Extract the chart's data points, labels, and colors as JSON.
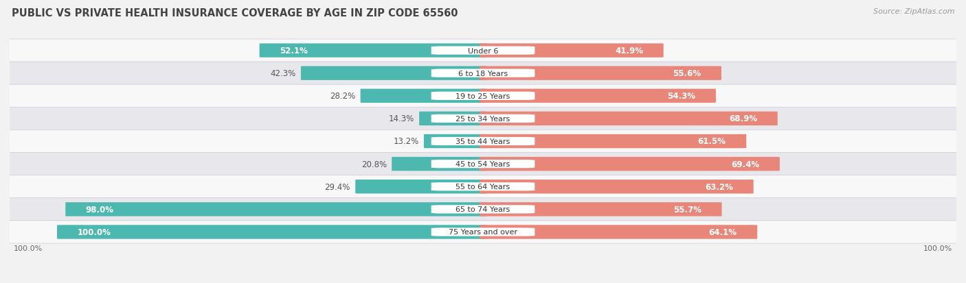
{
  "title": "PUBLIC VS PRIVATE HEALTH INSURANCE COVERAGE BY AGE IN ZIP CODE 65560",
  "source": "Source: ZipAtlas.com",
  "categories": [
    "Under 6",
    "6 to 18 Years",
    "19 to 25 Years",
    "25 to 34 Years",
    "35 to 44 Years",
    "45 to 54 Years",
    "55 to 64 Years",
    "65 to 74 Years",
    "75 Years and over"
  ],
  "public_values": [
    52.1,
    42.3,
    28.2,
    14.3,
    13.2,
    20.8,
    29.4,
    98.0,
    100.0
  ],
  "private_values": [
    41.9,
    55.6,
    54.3,
    68.9,
    61.5,
    69.4,
    63.2,
    55.7,
    64.1
  ],
  "public_color": "#4db8b0",
  "private_color": "#e8867a",
  "bg_color": "#f2f2f2",
  "row_colors": [
    "#f8f8f8",
    "#e8e8ec"
  ],
  "bar_height": 0.6,
  "title_fontsize": 10.5,
  "label_fontsize": 8.0,
  "value_fontsize": 8.5,
  "legend_fontsize": 9,
  "source_fontsize": 8,
  "pub_value_inside_threshold": 0.45,
  "priv_value_inside_threshold": 0.4
}
